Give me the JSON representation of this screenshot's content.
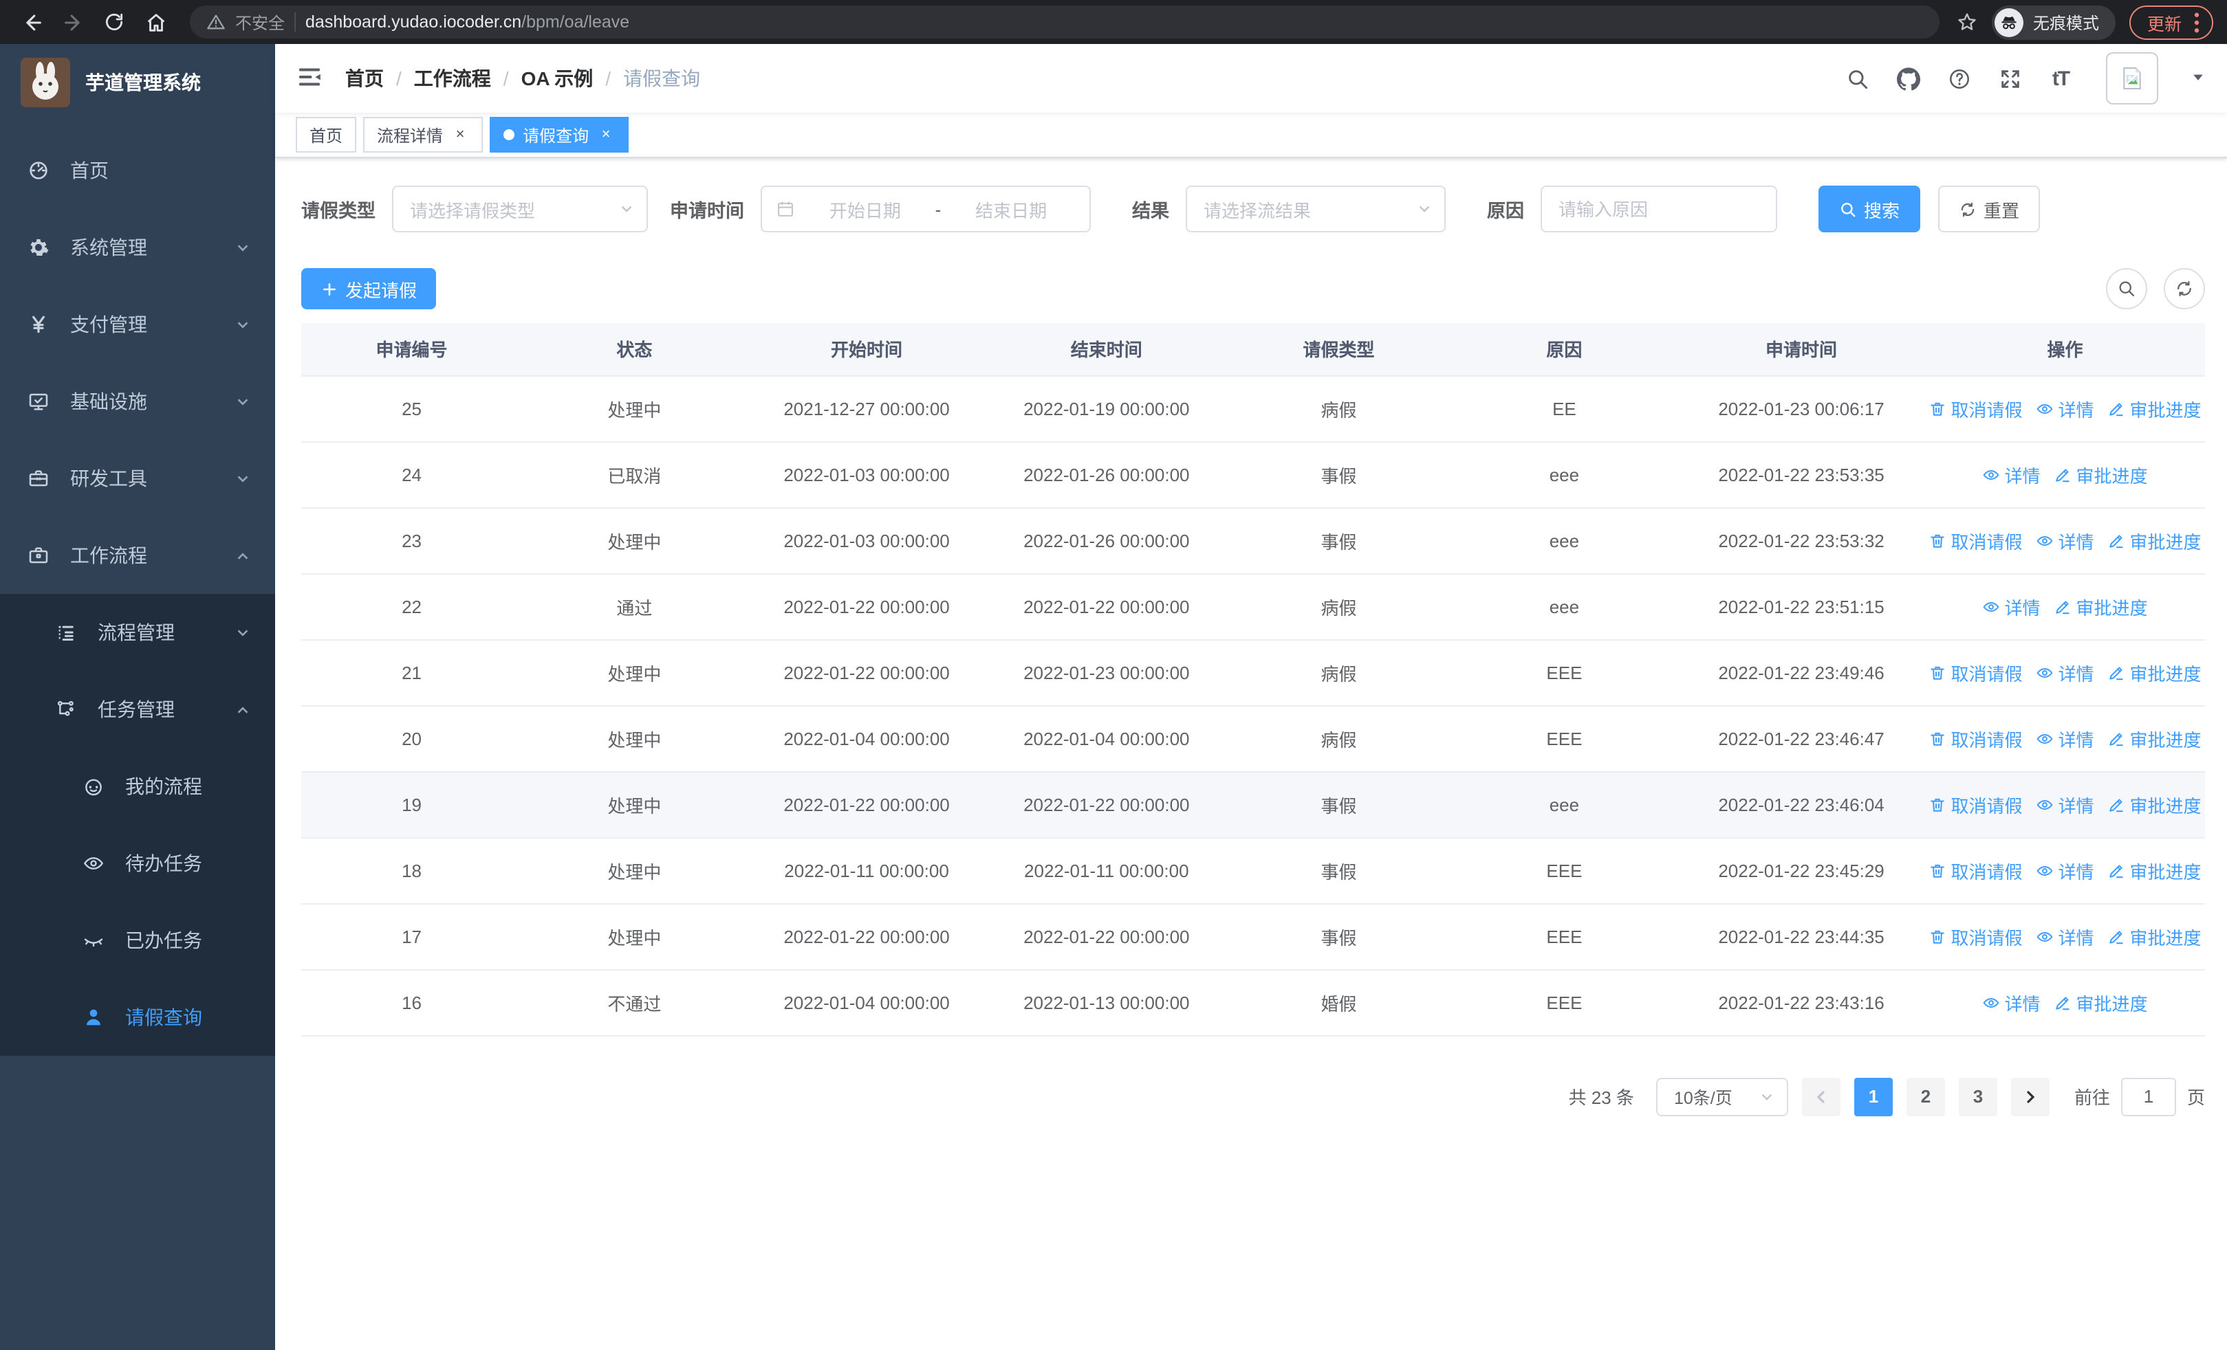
{
  "browser": {
    "security_label": "不安全",
    "url_host": "dashboard.yudao.iocoder.cn",
    "url_path": "/bpm/oa/leave",
    "incognito_label": "无痕模式",
    "update_label": "更新"
  },
  "sidebar": {
    "app_title": "芋道管理系统",
    "menu": [
      {
        "label": "首页",
        "icon": "dashboard-icon"
      },
      {
        "label": "系统管理",
        "icon": "gear-icon",
        "expandable": true
      },
      {
        "label": "支付管理",
        "icon": "yen-icon",
        "expandable": true
      },
      {
        "label": "基础设施",
        "icon": "monitor-icon",
        "expandable": true
      },
      {
        "label": "研发工具",
        "icon": "toolbox-icon",
        "expandable": true
      },
      {
        "label": "工作流程",
        "icon": "briefcase-icon",
        "expandable": true,
        "expanded": true,
        "children": [
          {
            "label": "流程管理",
            "icon": "list-tree-icon",
            "expandable": true
          },
          {
            "label": "任务管理",
            "icon": "flow-icon",
            "expandable": true,
            "expanded": true,
            "children": [
              {
                "label": "我的流程",
                "icon": "face-icon"
              },
              {
                "label": "待办任务",
                "icon": "eye-open-icon"
              },
              {
                "label": "已办任务",
                "icon": "eye-closed-icon"
              },
              {
                "label": "请假查询",
                "icon": "user-icon",
                "active": true
              }
            ]
          }
        ]
      }
    ]
  },
  "breadcrumb": {
    "items": [
      "首页",
      "工作流程",
      "OA 示例",
      "请假查询"
    ]
  },
  "tabs": [
    {
      "label": "首页",
      "closable": false,
      "active": false
    },
    {
      "label": "流程详情",
      "closable": true,
      "active": false
    },
    {
      "label": "请假查询",
      "closable": true,
      "active": true
    }
  ],
  "filters": {
    "type_label": "请假类型",
    "type_placeholder": "请选择请假类型",
    "time_label": "申请时间",
    "start_placeholder": "开始日期",
    "range_separator": "-",
    "end_placeholder": "结束日期",
    "result_label": "结果",
    "result_placeholder": "请选择流结果",
    "reason_label": "原因",
    "reason_placeholder": "请输入原因",
    "search_label": "搜索",
    "reset_label": "重置"
  },
  "toolbar": {
    "create_label": "发起请假"
  },
  "table": {
    "columns": [
      "申请编号",
      "状态",
      "开始时间",
      "结束时间",
      "请假类型",
      "原因",
      "申请时间",
      "操作"
    ],
    "action_labels": {
      "cancel": "取消请假",
      "detail": "详情",
      "progress": "审批进度"
    },
    "rows": [
      {
        "id": "25",
        "status": "处理中",
        "start": "2021-12-27 00:00:00",
        "end": "2022-01-19 00:00:00",
        "type": "病假",
        "reason": "EE",
        "apply": "2022-01-23 00:06:17",
        "cancel": true,
        "highlight": false
      },
      {
        "id": "24",
        "status": "已取消",
        "start": "2022-01-03 00:00:00",
        "end": "2022-01-26 00:00:00",
        "type": "事假",
        "reason": "eee",
        "apply": "2022-01-22 23:53:35",
        "cancel": false,
        "highlight": false
      },
      {
        "id": "23",
        "status": "处理中",
        "start": "2022-01-03 00:00:00",
        "end": "2022-01-26 00:00:00",
        "type": "事假",
        "reason": "eee",
        "apply": "2022-01-22 23:53:32",
        "cancel": true,
        "highlight": false
      },
      {
        "id": "22",
        "status": "通过",
        "start": "2022-01-22 00:00:00",
        "end": "2022-01-22 00:00:00",
        "type": "病假",
        "reason": "eee",
        "apply": "2022-01-22 23:51:15",
        "cancel": false,
        "highlight": false
      },
      {
        "id": "21",
        "status": "处理中",
        "start": "2022-01-22 00:00:00",
        "end": "2022-01-23 00:00:00",
        "type": "病假",
        "reason": "EEE",
        "apply": "2022-01-22 23:49:46",
        "cancel": true,
        "highlight": false
      },
      {
        "id": "20",
        "status": "处理中",
        "start": "2022-01-04 00:00:00",
        "end": "2022-01-04 00:00:00",
        "type": "病假",
        "reason": "EEE",
        "apply": "2022-01-22 23:46:47",
        "cancel": true,
        "highlight": false
      },
      {
        "id": "19",
        "status": "处理中",
        "start": "2022-01-22 00:00:00",
        "end": "2022-01-22 00:00:00",
        "type": "事假",
        "reason": "eee",
        "apply": "2022-01-22 23:46:04",
        "cancel": true,
        "highlight": true
      },
      {
        "id": "18",
        "status": "处理中",
        "start": "2022-01-11 00:00:00",
        "end": "2022-01-11 00:00:00",
        "type": "事假",
        "reason": "EEE",
        "apply": "2022-01-22 23:45:29",
        "cancel": true,
        "highlight": false
      },
      {
        "id": "17",
        "status": "处理中",
        "start": "2022-01-22 00:00:00",
        "end": "2022-01-22 00:00:00",
        "type": "事假",
        "reason": "EEE",
        "apply": "2022-01-22 23:44:35",
        "cancel": true,
        "highlight": false
      },
      {
        "id": "16",
        "status": "不通过",
        "start": "2022-01-04 00:00:00",
        "end": "2022-01-13 00:00:00",
        "type": "婚假",
        "reason": "EEE",
        "apply": "2022-01-22 23:43:16",
        "cancel": false,
        "highlight": false
      }
    ]
  },
  "pagination": {
    "total_label": "共 23 条",
    "page_size": "10条/页",
    "pages": [
      "1",
      "2",
      "3"
    ],
    "active_page": "1",
    "goto_label": "前往",
    "goto_value": "1",
    "goto_suffix": "页"
  },
  "colors": {
    "primary": "#409eff",
    "sidebar_bg": "#304156",
    "submenu_bg": "#1f2d3d",
    "update_accent": "#ee8277"
  }
}
